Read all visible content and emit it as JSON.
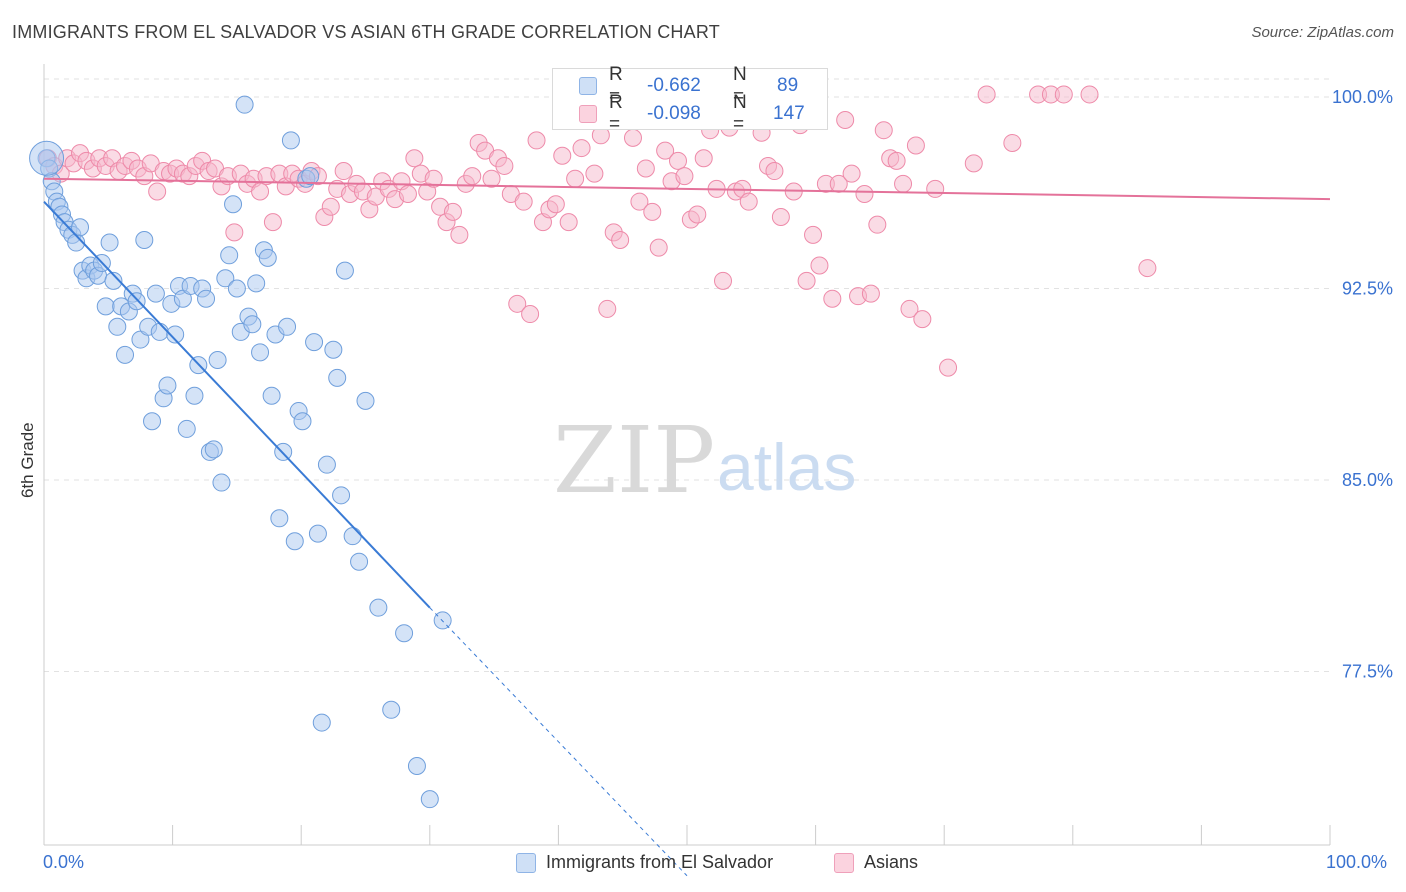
{
  "header": {
    "title": "IMMIGRANTS FROM EL SALVADOR VS ASIAN 6TH GRADE CORRELATION CHART",
    "source": "Source: ZipAtlas.com"
  },
  "watermark": {
    "zip": "ZIP",
    "atlas": "atlas"
  },
  "stats": [
    {
      "r_label": "R =",
      "r_value": "-0.662",
      "n_label": "N =",
      "n_value": "89",
      "color": "#a9c8ef"
    },
    {
      "r_label": "R =",
      "r_value": "-0.098",
      "n_label": "N =",
      "n_value": "147",
      "color": "#f6b8cb"
    }
  ],
  "x_axis_labels": {
    "left": "0.0%",
    "right": "100.0%"
  },
  "colors": {
    "blue_fill": "#a9c8ef",
    "blue_stroke": "#6f9fdc",
    "blue_line": "#3a7bd5",
    "pink_fill": "#f6b8cb",
    "pink_stroke": "#ee8aa9",
    "pink_line": "#e4729a",
    "tick_text": "#3a72d0",
    "grid": "#e2e2e2"
  },
  "chart_data": {
    "type": "scatter",
    "title": "IMMIGRANTS FROM EL SALVADOR VS ASIAN 6TH GRADE CORRELATION CHART",
    "xlabel": "",
    "ylabel": "6th Grade",
    "xlim": [
      0,
      100
    ],
    "ylim": [
      70.5,
      101.5
    ],
    "y_ticks": [
      100.0,
      92.5,
      85.0,
      77.5
    ],
    "y_tick_labels": [
      "100.0%",
      "92.5%",
      "85.0%",
      "77.5%"
    ],
    "grid": true,
    "legend": "bottom",
    "series": [
      {
        "name": "Immigrants from El Salvador",
        "color": "#a9c8ef",
        "r": -0.662,
        "n": 89,
        "trend": {
          "x": [
            0,
            30,
            50
          ],
          "y": [
            95.9,
            80.0,
            69.5
          ]
        },
        "points": [
          [
            0.2,
            97.6
          ],
          [
            0.4,
            97.2
          ],
          [
            0.6,
            96.7
          ],
          [
            0.8,
            96.3
          ],
          [
            1.0,
            95.9
          ],
          [
            1.2,
            95.7
          ],
          [
            1.4,
            95.4
          ],
          [
            1.6,
            95.1
          ],
          [
            1.9,
            94.8
          ],
          [
            2.2,
            94.6
          ],
          [
            2.5,
            94.3
          ],
          [
            2.8,
            94.9
          ],
          [
            3.0,
            93.2
          ],
          [
            3.3,
            92.9
          ],
          [
            3.6,
            93.4
          ],
          [
            3.9,
            93.2
          ],
          [
            4.2,
            93.0
          ],
          [
            4.5,
            93.5
          ],
          [
            4.8,
            91.8
          ],
          [
            5.1,
            94.3
          ],
          [
            5.4,
            92.8
          ],
          [
            5.7,
            91.0
          ],
          [
            6.0,
            91.8
          ],
          [
            6.3,
            89.9
          ],
          [
            6.6,
            91.6
          ],
          [
            6.9,
            92.3
          ],
          [
            7.2,
            92.0
          ],
          [
            7.5,
            90.5
          ],
          [
            7.8,
            94.4
          ],
          [
            8.1,
            91.0
          ],
          [
            8.4,
            87.3
          ],
          [
            8.7,
            92.3
          ],
          [
            9.0,
            90.8
          ],
          [
            9.3,
            88.2
          ],
          [
            9.6,
            88.7
          ],
          [
            9.9,
            91.9
          ],
          [
            10.2,
            90.7
          ],
          [
            10.5,
            92.6
          ],
          [
            10.8,
            92.1
          ],
          [
            11.1,
            87.0
          ],
          [
            11.4,
            92.6
          ],
          [
            11.7,
            88.3
          ],
          [
            12.0,
            89.5
          ],
          [
            12.3,
            92.5
          ],
          [
            12.6,
            92.1
          ],
          [
            12.9,
            86.1
          ],
          [
            13.2,
            86.2
          ],
          [
            13.5,
            89.7
          ],
          [
            13.8,
            84.9
          ],
          [
            14.1,
            92.9
          ],
          [
            14.4,
            93.8
          ],
          [
            14.7,
            95.8
          ],
          [
            15.0,
            92.5
          ],
          [
            15.3,
            90.8
          ],
          [
            15.6,
            99.7
          ],
          [
            15.9,
            91.4
          ],
          [
            16.2,
            91.1
          ],
          [
            16.5,
            92.7
          ],
          [
            16.8,
            90.0
          ],
          [
            17.1,
            94.0
          ],
          [
            17.4,
            93.7
          ],
          [
            17.7,
            88.3
          ],
          [
            18.0,
            90.7
          ],
          [
            18.3,
            83.5
          ],
          [
            18.6,
            86.1
          ],
          [
            18.9,
            91.0
          ],
          [
            19.2,
            98.3
          ],
          [
            19.5,
            82.6
          ],
          [
            19.8,
            87.7
          ],
          [
            20.1,
            87.3
          ],
          [
            20.4,
            96.8
          ],
          [
            20.7,
            96.9
          ],
          [
            21.0,
            90.4
          ],
          [
            21.3,
            82.9
          ],
          [
            21.6,
            75.5
          ],
          [
            22.0,
            85.6
          ],
          [
            22.5,
            90.1
          ],
          [
            22.8,
            89.0
          ],
          [
            23.1,
            84.4
          ],
          [
            23.4,
            93.2
          ],
          [
            24.0,
            82.8
          ],
          [
            24.5,
            81.8
          ],
          [
            25.0,
            88.1
          ],
          [
            26.0,
            80.0
          ],
          [
            27.0,
            76.0
          ],
          [
            28.0,
            79.0
          ],
          [
            29.0,
            73.8
          ],
          [
            30.0,
            72.5
          ],
          [
            31.0,
            79.5
          ]
        ]
      },
      {
        "name": "Asians",
        "color": "#f6b8cb",
        "r": -0.098,
        "n": 147,
        "trend": {
          "x": [
            0,
            100
          ],
          "y": [
            96.8,
            96.0
          ]
        },
        "points": [
          [
            0.3,
            97.6
          ],
          [
            0.8,
            97.3
          ],
          [
            1.3,
            97.0
          ],
          [
            1.8,
            97.6
          ],
          [
            2.3,
            97.4
          ],
          [
            2.8,
            97.8
          ],
          [
            3.3,
            97.5
          ],
          [
            3.8,
            97.2
          ],
          [
            4.3,
            97.6
          ],
          [
            4.8,
            97.3
          ],
          [
            5.3,
            97.6
          ],
          [
            5.8,
            97.1
          ],
          [
            6.3,
            97.3
          ],
          [
            6.8,
            97.5
          ],
          [
            7.3,
            97.2
          ],
          [
            7.8,
            96.9
          ],
          [
            8.3,
            97.4
          ],
          [
            8.8,
            96.3
          ],
          [
            9.3,
            97.1
          ],
          [
            9.8,
            97.0
          ],
          [
            10.3,
            97.2
          ],
          [
            10.8,
            97.0
          ],
          [
            11.3,
            96.9
          ],
          [
            11.8,
            97.3
          ],
          [
            12.3,
            97.5
          ],
          [
            12.8,
            97.1
          ],
          [
            13.3,
            97.2
          ],
          [
            13.8,
            96.5
          ],
          [
            14.3,
            96.9
          ],
          [
            14.8,
            94.7
          ],
          [
            15.3,
            97.0
          ],
          [
            15.8,
            96.6
          ],
          [
            16.3,
            96.8
          ],
          [
            16.8,
            96.3
          ],
          [
            17.3,
            96.9
          ],
          [
            17.8,
            95.1
          ],
          [
            18.3,
            97.0
          ],
          [
            18.8,
            96.5
          ],
          [
            19.3,
            97.0
          ],
          [
            19.8,
            96.8
          ],
          [
            20.3,
            96.6
          ],
          [
            20.8,
            97.1
          ],
          [
            21.3,
            96.9
          ],
          [
            21.8,
            95.3
          ],
          [
            22.3,
            95.7
          ],
          [
            22.8,
            96.4
          ],
          [
            23.3,
            97.1
          ],
          [
            23.8,
            96.2
          ],
          [
            24.3,
            96.6
          ],
          [
            24.8,
            96.3
          ],
          [
            25.3,
            95.6
          ],
          [
            25.8,
            96.1
          ],
          [
            26.3,
            96.7
          ],
          [
            26.8,
            96.4
          ],
          [
            27.3,
            96.0
          ],
          [
            27.8,
            96.7
          ],
          [
            28.3,
            96.2
          ],
          [
            28.8,
            97.6
          ],
          [
            29.3,
            97.0
          ],
          [
            29.8,
            96.3
          ],
          [
            30.3,
            96.8
          ],
          [
            30.8,
            95.7
          ],
          [
            31.3,
            95.1
          ],
          [
            31.8,
            95.5
          ],
          [
            32.3,
            94.6
          ],
          [
            32.8,
            96.6
          ],
          [
            33.3,
            96.9
          ],
          [
            33.8,
            98.2
          ],
          [
            34.3,
            97.9
          ],
          [
            34.8,
            96.8
          ],
          [
            35.3,
            97.6
          ],
          [
            35.8,
            97.3
          ],
          [
            36.3,
            96.2
          ],
          [
            36.8,
            91.9
          ],
          [
            37.3,
            95.9
          ],
          [
            37.8,
            91.5
          ],
          [
            38.3,
            98.3
          ],
          [
            38.8,
            95.1
          ],
          [
            39.3,
            95.6
          ],
          [
            39.8,
            95.8
          ],
          [
            40.3,
            97.7
          ],
          [
            40.8,
            95.1
          ],
          [
            41.3,
            96.8
          ],
          [
            41.8,
            98.0
          ],
          [
            42.3,
            99.5
          ],
          [
            42.8,
            97.0
          ],
          [
            43.3,
            98.5
          ],
          [
            43.8,
            91.7
          ],
          [
            44.3,
            94.7
          ],
          [
            44.8,
            94.4
          ],
          [
            45.3,
            99.2
          ],
          [
            45.8,
            98.4
          ],
          [
            46.3,
            95.9
          ],
          [
            46.8,
            97.2
          ],
          [
            47.3,
            95.5
          ],
          [
            47.8,
            94.1
          ],
          [
            48.3,
            97.9
          ],
          [
            48.8,
            96.7
          ],
          [
            49.3,
            97.5
          ],
          [
            49.8,
            96.9
          ],
          [
            50.3,
            95.2
          ],
          [
            50.8,
            95.4
          ],
          [
            51.3,
            97.6
          ],
          [
            51.8,
            98.7
          ],
          [
            52.3,
            96.4
          ],
          [
            52.8,
            92.8
          ],
          [
            53.3,
            98.8
          ],
          [
            53.8,
            96.3
          ],
          [
            54.3,
            96.4
          ],
          [
            54.8,
            95.9
          ],
          [
            55.3,
            99.3
          ],
          [
            55.8,
            98.6
          ],
          [
            56.3,
            97.3
          ],
          [
            56.8,
            97.1
          ],
          [
            57.3,
            95.3
          ],
          [
            57.8,
            99.5
          ],
          [
            58.3,
            96.3
          ],
          [
            58.8,
            98.9
          ],
          [
            59.3,
            92.8
          ],
          [
            59.8,
            94.6
          ],
          [
            60.3,
            93.4
          ],
          [
            60.8,
            96.6
          ],
          [
            61.3,
            92.1
          ],
          [
            61.8,
            96.6
          ],
          [
            62.3,
            99.1
          ],
          [
            62.8,
            97.0
          ],
          [
            63.3,
            92.2
          ],
          [
            63.8,
            96.2
          ],
          [
            64.3,
            92.3
          ],
          [
            64.8,
            95.0
          ],
          [
            65.3,
            98.7
          ],
          [
            65.8,
            97.6
          ],
          [
            66.3,
            97.5
          ],
          [
            66.8,
            96.6
          ],
          [
            67.3,
            91.7
          ],
          [
            67.8,
            98.1
          ],
          [
            68.3,
            91.3
          ],
          [
            69.3,
            96.4
          ],
          [
            70.3,
            89.4
          ],
          [
            72.3,
            97.4
          ],
          [
            73.3,
            100.1
          ],
          [
            75.3,
            98.2
          ],
          [
            77.3,
            100.1
          ],
          [
            78.3,
            100.1
          ],
          [
            79.3,
            100.1
          ],
          [
            81.3,
            100.1
          ],
          [
            85.8,
            93.3
          ]
        ]
      }
    ]
  },
  "legend": [
    {
      "label": "Immigrants from El Salvador"
    },
    {
      "label": "Asians"
    }
  ]
}
